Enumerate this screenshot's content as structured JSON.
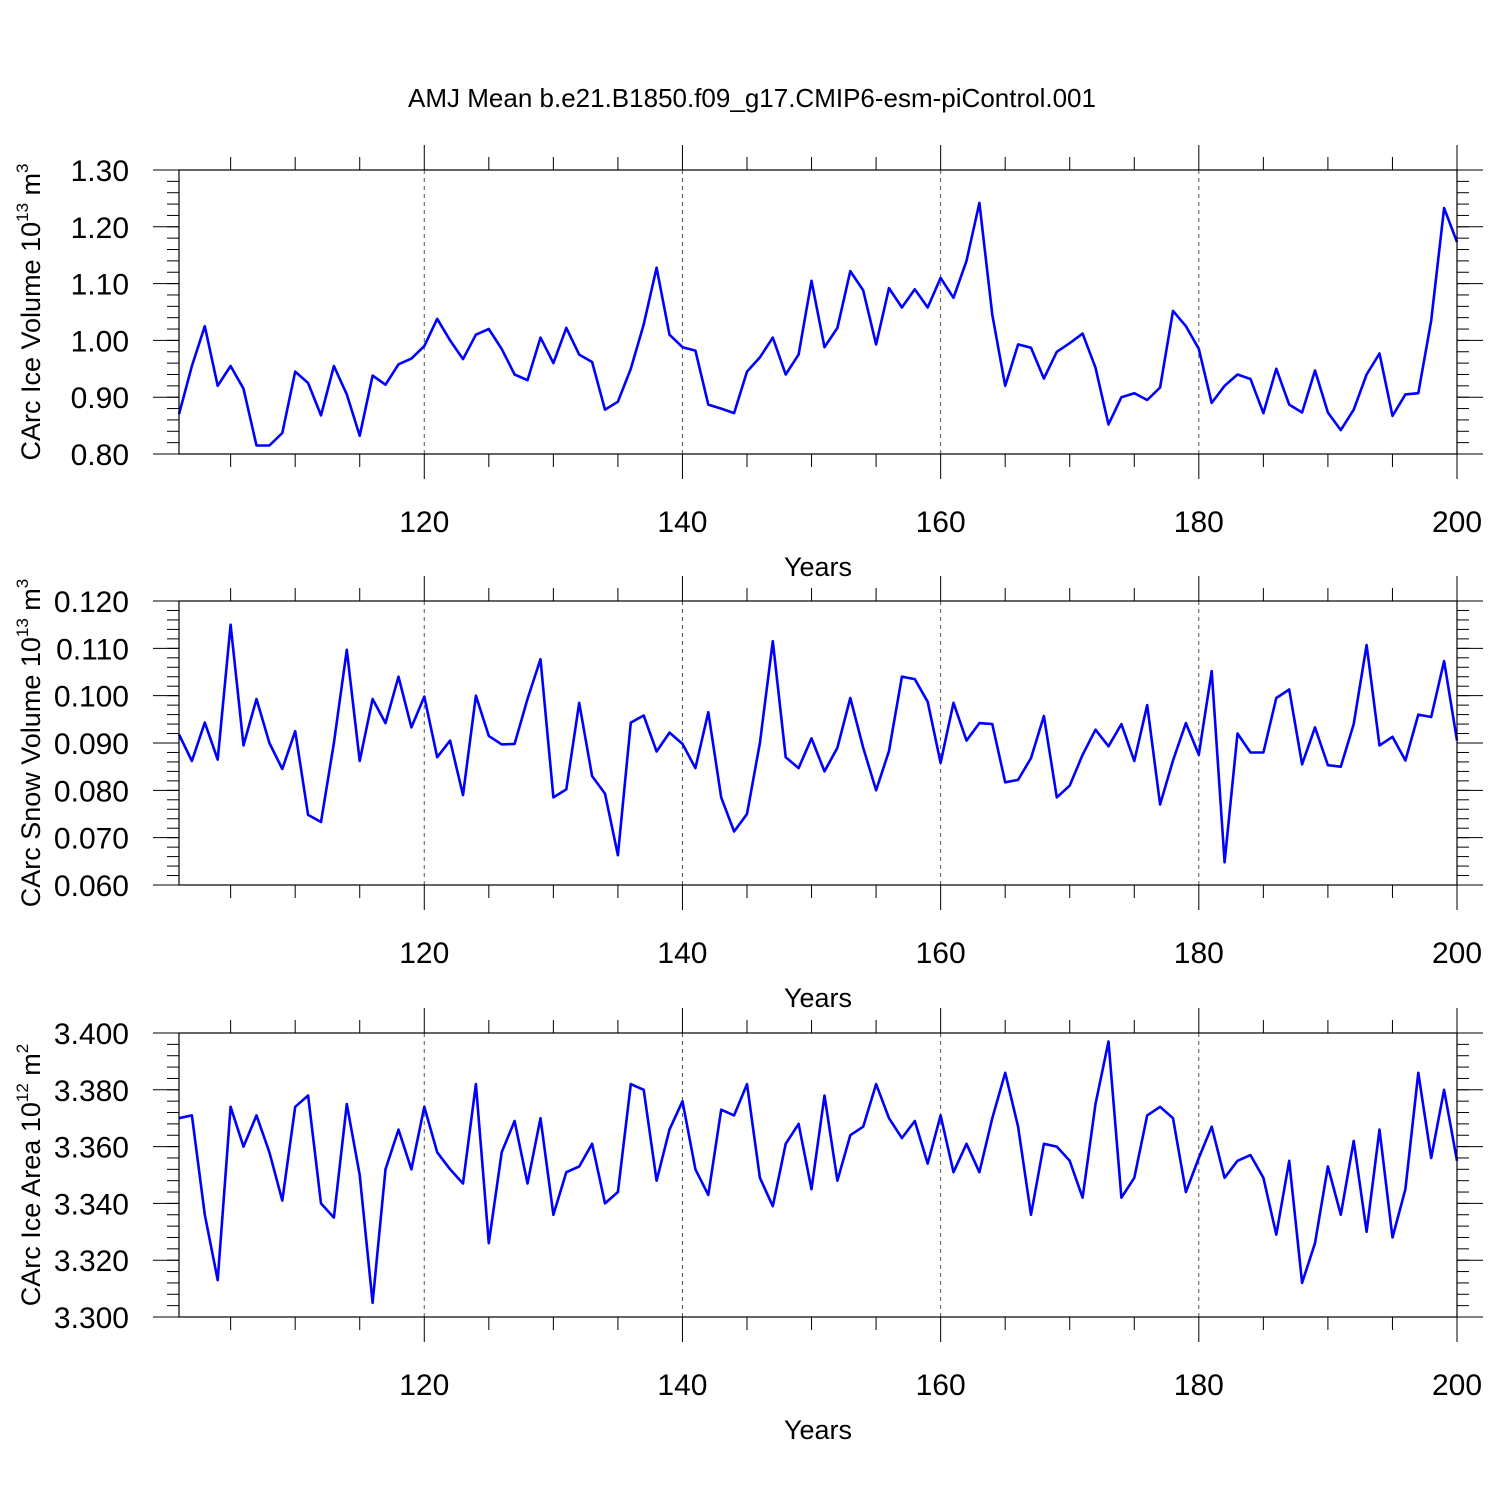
{
  "title": "AMJ Mean b.e21.B1850.f09_g17.CMIP6-esm-piControl.001",
  "colors": {
    "line": "#0000ff",
    "axis": "#000000",
    "grid": "#555555"
  },
  "chart_data": [
    {
      "type": "line",
      "title": "AMJ Mean b.e21.B1850.f09_g17.CMIP6-esm-piControl.001",
      "xlabel": "Years",
      "ylabel": "CArc Ice Volume 10",
      "ylabel_exp": "13",
      "ylabel_unit": " m",
      "ylabel_unit_exp": "3",
      "xlim": [
        101,
        200
      ],
      "ylim": [
        0.8,
        1.3
      ],
      "xticks": [
        "120",
        "140",
        "160",
        "180",
        "200"
      ],
      "yticks": [
        "0.80",
        "0.90",
        "1.00",
        "1.10",
        "1.20",
        "1.30"
      ],
      "grid": "vertical dashed at major x ticks",
      "x_start": 101,
      "values": [
        0.87,
        0.955,
        1.025,
        0.92,
        0.955,
        0.915,
        0.815,
        0.815,
        0.837,
        0.945,
        0.925,
        0.868,
        0.955,
        0.905,
        0.832,
        0.938,
        0.922,
        0.958,
        0.968,
        0.99,
        1.038,
        1.0,
        0.967,
        1.01,
        1.02,
        0.985,
        0.94,
        0.93,
        1.005,
        0.96,
        1.022,
        0.975,
        0.962,
        0.878,
        0.892,
        0.95,
        1.028,
        1.128,
        1.01,
        0.988,
        0.982,
        0.887,
        0.88,
        0.872,
        0.945,
        0.97,
        1.005,
        0.94,
        0.975,
        1.105,
        0.988,
        1.022,
        1.122,
        1.088,
        0.993,
        1.092,
        1.058,
        1.09,
        1.058,
        1.11,
        1.075,
        1.14,
        1.242,
        1.045,
        0.92,
        0.993,
        0.987,
        0.933,
        0.98,
        0.995,
        1.012,
        0.952,
        0.852,
        0.9,
        0.907,
        0.895,
        0.917,
        1.052,
        1.025,
        0.985,
        0.89,
        0.92,
        0.94,
        0.932,
        0.872,
        0.95,
        0.887,
        0.873,
        0.947,
        0.873,
        0.842,
        0.878,
        0.94,
        0.977,
        0.867,
        0.905,
        0.907,
        1.035,
        1.233,
        1.173
      ]
    },
    {
      "type": "line",
      "xlabel": "Years",
      "ylabel": "CArc Snow Volume 10",
      "ylabel_exp": "13",
      "ylabel_unit": " m",
      "ylabel_unit_exp": "3",
      "xlim": [
        101,
        200
      ],
      "ylim": [
        0.06,
        0.12
      ],
      "xticks": [
        "120",
        "140",
        "160",
        "180",
        "200"
      ],
      "yticks": [
        "0.060",
        "0.070",
        "0.080",
        "0.090",
        "0.100",
        "0.110",
        "0.120"
      ],
      "grid": "vertical dashed at major x ticks",
      "x_start": 101,
      "values": [
        0.0918,
        0.0862,
        0.0943,
        0.0865,
        0.115,
        0.0895,
        0.0993,
        0.09,
        0.0845,
        0.0925,
        0.0748,
        0.0733,
        0.09,
        0.1097,
        0.0862,
        0.0993,
        0.0942,
        0.104,
        0.0933,
        0.0998,
        0.087,
        0.0905,
        0.079,
        0.1,
        0.0915,
        0.0897,
        0.0898,
        0.0993,
        0.1077,
        0.0785,
        0.0802,
        0.0985,
        0.083,
        0.0793,
        0.0663,
        0.0943,
        0.0958,
        0.0882,
        0.0922,
        0.0898,
        0.0847,
        0.0965,
        0.0785,
        0.0713,
        0.075,
        0.09,
        0.1115,
        0.087,
        0.0847,
        0.091,
        0.084,
        0.089,
        0.0995,
        0.089,
        0.08,
        0.0883,
        0.104,
        0.1035,
        0.0987,
        0.0858,
        0.0985,
        0.0905,
        0.0942,
        0.094,
        0.0817,
        0.0822,
        0.0868,
        0.0957,
        0.0785,
        0.081,
        0.0875,
        0.0928,
        0.0893,
        0.094,
        0.0862,
        0.098,
        0.077,
        0.0863,
        0.0942,
        0.0875,
        0.1052,
        0.0648,
        0.092,
        0.088,
        0.088,
        0.0995,
        0.1013,
        0.0855,
        0.0933,
        0.0853,
        0.085,
        0.094,
        0.1107,
        0.0895,
        0.0913,
        0.0863,
        0.096,
        0.0955,
        0.1073,
        0.0905
      ]
    },
    {
      "type": "line",
      "xlabel": "Years",
      "ylabel": "CArc Ice Area 10",
      "ylabel_exp": "12",
      "ylabel_unit": " m",
      "ylabel_unit_exp": "2",
      "xlim": [
        101,
        200
      ],
      "ylim": [
        3.3,
        3.4
      ],
      "xticks": [
        "120",
        "140",
        "160",
        "180",
        "200"
      ],
      "yticks": [
        "3.300",
        "3.320",
        "3.340",
        "3.360",
        "3.380",
        "3.400"
      ],
      "grid": "vertical dashed at major x ticks",
      "x_start": 101,
      "values": [
        3.37,
        3.371,
        3.336,
        3.313,
        3.374,
        3.36,
        3.371,
        3.358,
        3.341,
        3.374,
        3.378,
        3.34,
        3.335,
        3.375,
        3.35,
        3.305,
        3.352,
        3.366,
        3.352,
        3.374,
        3.358,
        3.352,
        3.347,
        3.382,
        3.326,
        3.358,
        3.369,
        3.347,
        3.37,
        3.336,
        3.351,
        3.353,
        3.361,
        3.34,
        3.344,
        3.382,
        3.38,
        3.348,
        3.366,
        3.376,
        3.352,
        3.343,
        3.373,
        3.371,
        3.382,
        3.349,
        3.339,
        3.361,
        3.368,
        3.345,
        3.378,
        3.348,
        3.364,
        3.367,
        3.382,
        3.37,
        3.363,
        3.369,
        3.354,
        3.371,
        3.351,
        3.361,
        3.351,
        3.37,
        3.386,
        3.367,
        3.336,
        3.361,
        3.36,
        3.355,
        3.342,
        3.375,
        3.397,
        3.342,
        3.349,
        3.371,
        3.374,
        3.37,
        3.344,
        3.356,
        3.367,
        3.349,
        3.355,
        3.357,
        3.349,
        3.329,
        3.355,
        3.312,
        3.326,
        3.353,
        3.336,
        3.362,
        3.33,
        3.366,
        3.328,
        3.345,
        3.386,
        3.356,
        3.38,
        3.355
      ]
    }
  ]
}
